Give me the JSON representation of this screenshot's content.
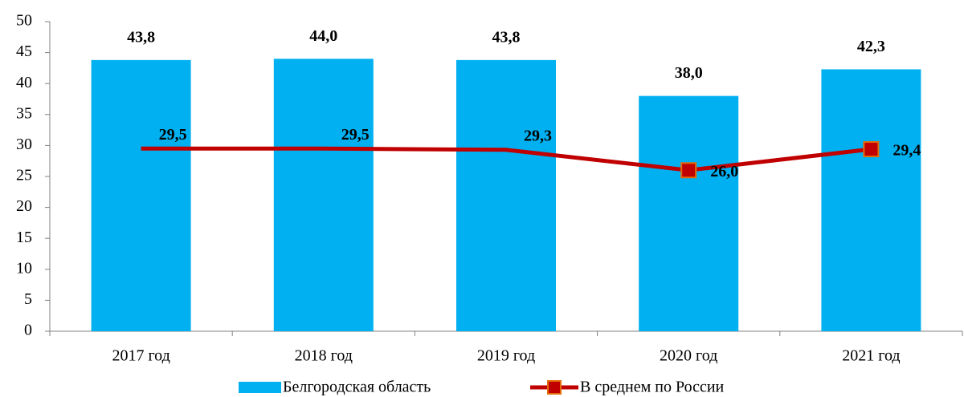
{
  "chart_data": {
    "type": "bar_line",
    "categories": [
      "2017 год",
      "2018 год",
      "2019 год",
      "2020 год",
      "2021 год"
    ],
    "series": [
      {
        "name": "Белгородская область",
        "type": "bar",
        "color": "#00b0f0",
        "values": [
          43.8,
          44.0,
          43.8,
          38.0,
          42.3
        ],
        "value_labels": [
          "43,8",
          "44,0",
          "43,8",
          "38,0",
          "42,3"
        ]
      },
      {
        "name": "В среднем по России",
        "type": "line",
        "color": "#c00000",
        "marker_color": "#e46c0a",
        "values": [
          29.5,
          29.5,
          29.3,
          26.0,
          29.4
        ],
        "value_labels": [
          "29,5",
          "29,5",
          "29,3",
          "26,0",
          "29,4"
        ],
        "markers": [
          false,
          false,
          false,
          true,
          true
        ]
      }
    ],
    "ylim": [
      0,
      50
    ],
    "yticks": [
      0,
      5,
      10,
      15,
      20,
      25,
      30,
      35,
      40,
      45,
      50
    ],
    "legend": "bottom"
  }
}
